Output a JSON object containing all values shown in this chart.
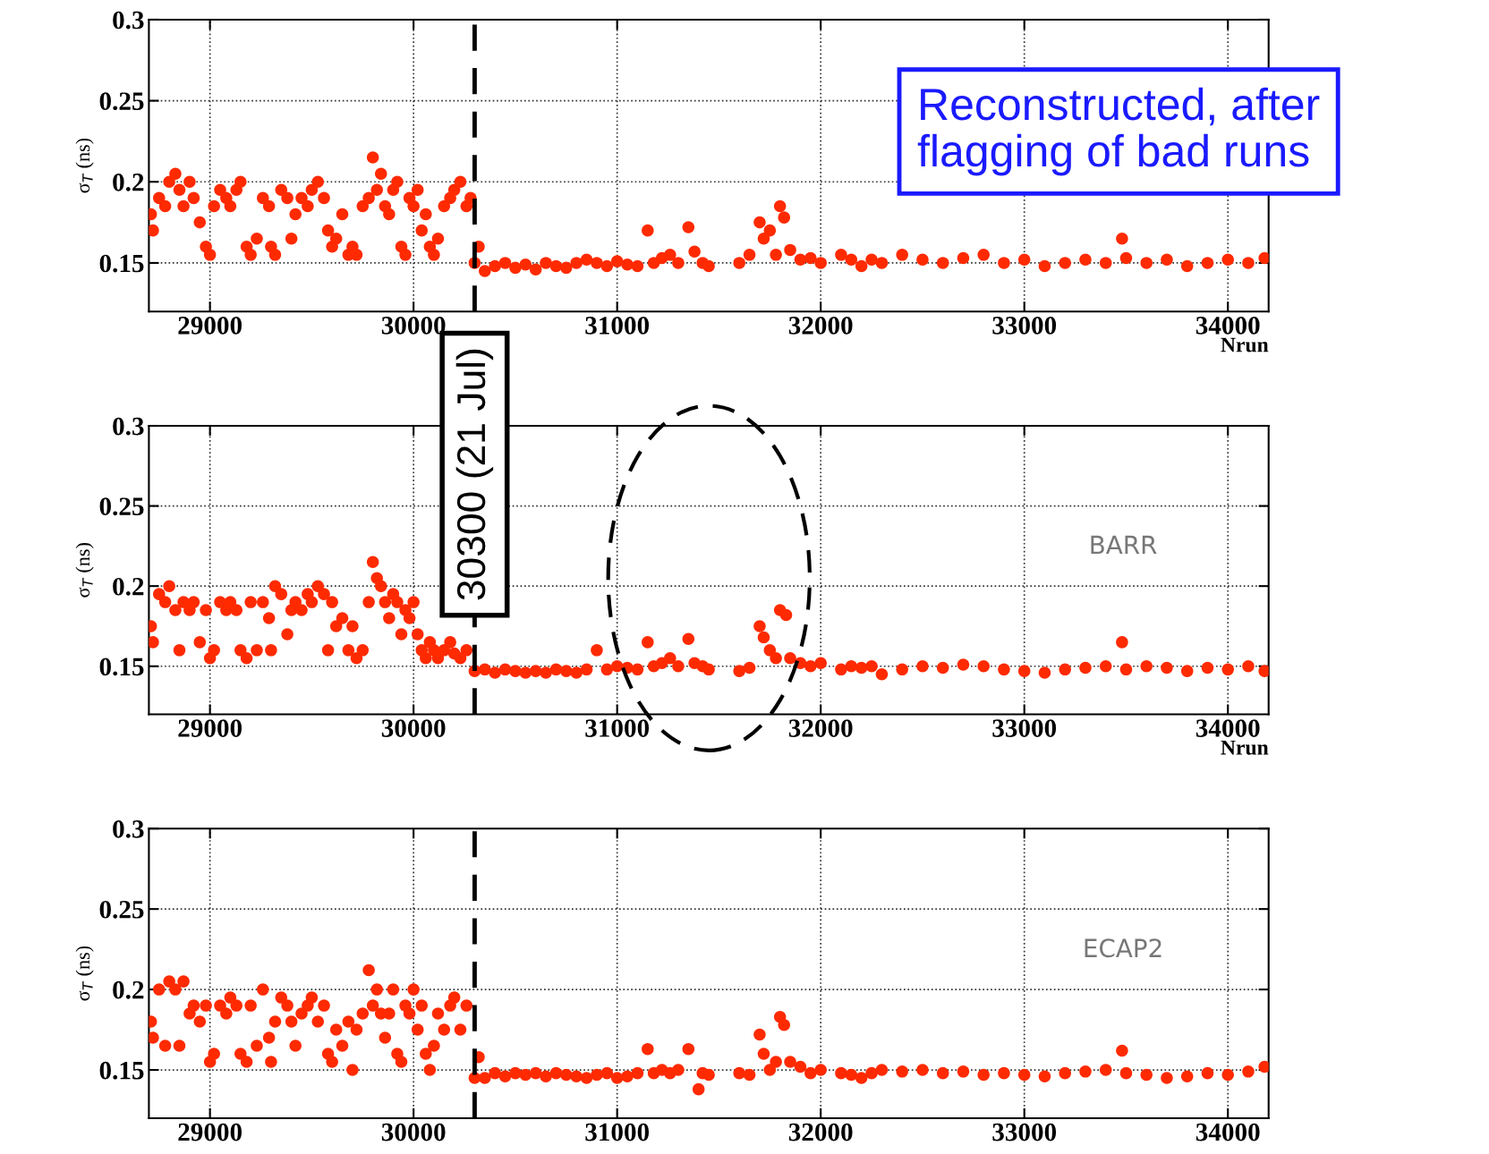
{
  "chart_data": [
    {
      "type": "scatter",
      "xlabel": "Nrun",
      "ylabel": "σ$_{T}$ (ns)",
      "xlim": [
        28700,
        34200
      ],
      "ylim": [
        0.12,
        0.3
      ],
      "xticks": [
        29000,
        30000,
        31000,
        32000,
        33000,
        34000
      ],
      "yticks": [
        0.15,
        0.2,
        0.25,
        0.3
      ],
      "grid": true,
      "marker": "circle",
      "ref_lines": [
        {
          "axis": "x",
          "value": 30300,
          "label": "30300 (21 Jul)",
          "color": "#000000",
          "line_style": "dashed"
        }
      ],
      "annotations": [
        "Reconstructed, after\nflagging of bad runs"
      ],
      "series": [
        {
          "color": "#ff2a00",
          "x": [
            28710,
            28720,
            28750,
            28780,
            28800,
            28830,
            28850,
            28870,
            28900,
            28920,
            28950,
            28980,
            29000,
            29020,
            29050,
            29080,
            29100,
            29130,
            29150,
            29180,
            29200,
            29230,
            29260,
            29290,
            29300,
            29320,
            29350,
            29380,
            29400,
            29420,
            29450,
            29480,
            29500,
            29530,
            29560,
            29580,
            29600,
            29620,
            29650,
            29680,
            29700,
            29720,
            29750,
            29780,
            29800,
            29820,
            29840,
            29860,
            29880,
            29900,
            29920,
            29940,
            29960,
            29980,
            30000,
            30020,
            30040,
            30060,
            30080,
            30100,
            30120,
            30150,
            30180,
            30200,
            30230,
            30260,
            30280,
            30300,
            30320,
            30350,
            30400,
            30450,
            30500,
            30550,
            30600,
            30650,
            30700,
            30750,
            30800,
            30850,
            30900,
            30950,
            31000,
            31050,
            31100,
            31150,
            31180,
            31220,
            31260,
            31300,
            31350,
            31380,
            31420,
            31450,
            31600,
            31650,
            31700,
            31720,
            31750,
            31780,
            31800,
            31820,
            31850,
            31900,
            31950,
            32000,
            32100,
            32150,
            32200,
            32250,
            32300,
            32400,
            32500,
            32600,
            32700,
            32800,
            32900,
            33000,
            33100,
            33200,
            33300,
            33400,
            33480,
            33500,
            33600,
            33700,
            33800,
            33900,
            34000,
            34100,
            34180
          ],
          "values": [
            0.18,
            0.17,
            0.19,
            0.185,
            0.2,
            0.205,
            0.195,
            0.185,
            0.2,
            0.19,
            0.175,
            0.16,
            0.155,
            0.185,
            0.195,
            0.19,
            0.185,
            0.195,
            0.2,
            0.16,
            0.155,
            0.165,
            0.19,
            0.185,
            0.16,
            0.155,
            0.195,
            0.19,
            0.165,
            0.18,
            0.19,
            0.185,
            0.195,
            0.2,
            0.19,
            0.17,
            0.16,
            0.165,
            0.18,
            0.155,
            0.16,
            0.155,
            0.185,
            0.19,
            0.215,
            0.195,
            0.205,
            0.185,
            0.18,
            0.195,
            0.2,
            0.16,
            0.155,
            0.19,
            0.185,
            0.195,
            0.17,
            0.18,
            0.16,
            0.155,
            0.165,
            0.185,
            0.19,
            0.195,
            0.2,
            0.185,
            0.19,
            0.15,
            0.16,
            0.145,
            0.148,
            0.15,
            0.147,
            0.149,
            0.146,
            0.15,
            0.148,
            0.147,
            0.15,
            0.152,
            0.15,
            0.148,
            0.151,
            0.149,
            0.148,
            0.17,
            0.15,
            0.153,
            0.155,
            0.15,
            0.172,
            0.157,
            0.15,
            0.148,
            0.15,
            0.155,
            0.175,
            0.165,
            0.17,
            0.155,
            0.185,
            0.178,
            0.158,
            0.152,
            0.153,
            0.15,
            0.155,
            0.152,
            0.148,
            0.152,
            0.15,
            0.155,
            0.152,
            0.15,
            0.153,
            0.155,
            0.15,
            0.152,
            0.148,
            0.15,
            0.152,
            0.15,
            0.165,
            0.153,
            0.15,
            0.152,
            0.148,
            0.15,
            0.152,
            0.15,
            0.153
          ]
        }
      ]
    },
    {
      "type": "scatter",
      "xlabel": "Nrun",
      "ylabel": "σ$_{T}$ (ns)",
      "xlim": [
        28700,
        34200
      ],
      "ylim": [
        0.12,
        0.3
      ],
      "xticks": [
        29000,
        30000,
        31000,
        32000,
        33000,
        34000
      ],
      "yticks": [
        0.15,
        0.2,
        0.25,
        0.3
      ],
      "grid": true,
      "marker": "circle",
      "ref_lines": [
        {
          "axis": "x",
          "value": 30300,
          "color": "#000000",
          "line_style": "dashed"
        }
      ],
      "annotations": [
        "BARR"
      ],
      "series": [
        {
          "color": "#ff2a00",
          "x": [
            28710,
            28720,
            28750,
            28780,
            28800,
            28830,
            28850,
            28870,
            28900,
            28920,
            28950,
            28980,
            29000,
            29020,
            29050,
            29080,
            29100,
            29130,
            29150,
            29180,
            29200,
            29230,
            29260,
            29290,
            29300,
            29320,
            29350,
            29380,
            29400,
            29420,
            29450,
            29480,
            29500,
            29530,
            29560,
            29580,
            29600,
            29620,
            29650,
            29680,
            29700,
            29720,
            29750,
            29780,
            29800,
            29820,
            29840,
            29860,
            29880,
            29900,
            29920,
            29940,
            29960,
            29980,
            30000,
            30020,
            30040,
            30060,
            30080,
            30100,
            30120,
            30150,
            30180,
            30200,
            30230,
            30260,
            30300,
            30350,
            30400,
            30450,
            30500,
            30550,
            30600,
            30650,
            30700,
            30750,
            30800,
            30850,
            30900,
            30950,
            31000,
            31050,
            31100,
            31150,
            31180,
            31220,
            31260,
            31300,
            31350,
            31380,
            31420,
            31450,
            31600,
            31650,
            31700,
            31720,
            31750,
            31780,
            31800,
            31830,
            31850,
            31900,
            31950,
            32000,
            32100,
            32150,
            32200,
            32250,
            32300,
            32400,
            32500,
            32600,
            32700,
            32800,
            32900,
            33000,
            33100,
            33200,
            33300,
            33400,
            33480,
            33500,
            33600,
            33700,
            33800,
            33900,
            34000,
            34100,
            34180
          ],
          "values": [
            0.175,
            0.165,
            0.195,
            0.19,
            0.2,
            0.185,
            0.16,
            0.19,
            0.185,
            0.19,
            0.165,
            0.185,
            0.155,
            0.16,
            0.19,
            0.185,
            0.19,
            0.185,
            0.16,
            0.155,
            0.19,
            0.16,
            0.19,
            0.18,
            0.16,
            0.2,
            0.195,
            0.17,
            0.185,
            0.19,
            0.185,
            0.195,
            0.19,
            0.2,
            0.195,
            0.16,
            0.19,
            0.175,
            0.18,
            0.16,
            0.175,
            0.155,
            0.16,
            0.19,
            0.215,
            0.205,
            0.2,
            0.19,
            0.18,
            0.195,
            0.19,
            0.17,
            0.185,
            0.18,
            0.19,
            0.17,
            0.16,
            0.155,
            0.165,
            0.16,
            0.155,
            0.16,
            0.165,
            0.158,
            0.155,
            0.16,
            0.147,
            0.148,
            0.146,
            0.148,
            0.147,
            0.146,
            0.147,
            0.146,
            0.148,
            0.147,
            0.146,
            0.148,
            0.16,
            0.148,
            0.15,
            0.149,
            0.148,
            0.165,
            0.15,
            0.152,
            0.155,
            0.15,
            0.167,
            0.152,
            0.15,
            0.148,
            0.147,
            0.149,
            0.175,
            0.168,
            0.16,
            0.155,
            0.185,
            0.182,
            0.155,
            0.152,
            0.15,
            0.152,
            0.148,
            0.15,
            0.149,
            0.15,
            0.145,
            0.148,
            0.15,
            0.149,
            0.151,
            0.15,
            0.148,
            0.147,
            0.146,
            0.148,
            0.149,
            0.15,
            0.165,
            0.148,
            0.15,
            0.149,
            0.147,
            0.149,
            0.148,
            0.15,
            0.147
          ]
        }
      ]
    },
    {
      "type": "scatter",
      "ylabel": "σ$_{T}$ (ns)",
      "xlim": [
        28700,
        34200
      ],
      "ylim": [
        0.12,
        0.3
      ],
      "xticks": [
        29000,
        30000,
        31000,
        32000,
        33000,
        34000
      ],
      "yticks": [
        0.15,
        0.2,
        0.25,
        0.3
      ],
      "grid": true,
      "marker": "circle",
      "ref_lines": [
        {
          "axis": "x",
          "value": 30300,
          "color": "#000000",
          "line_style": "dashed"
        }
      ],
      "annotations": [
        "ECAP2"
      ],
      "series": [
        {
          "color": "#ff2a00",
          "x": [
            28710,
            28720,
            28750,
            28780,
            28800,
            28830,
            28850,
            28870,
            28900,
            28920,
            28950,
            28980,
            29000,
            29020,
            29050,
            29080,
            29100,
            29130,
            29150,
            29180,
            29200,
            29230,
            29260,
            29290,
            29300,
            29320,
            29350,
            29380,
            29400,
            29420,
            29450,
            29480,
            29500,
            29530,
            29560,
            29580,
            29600,
            29620,
            29650,
            29680,
            29700,
            29720,
            29750,
            29780,
            29800,
            29820,
            29840,
            29860,
            29880,
            29900,
            29920,
            29940,
            29960,
            29980,
            30000,
            30020,
            30040,
            30060,
            30080,
            30100,
            30120,
            30150,
            30180,
            30200,
            30230,
            30260,
            30300,
            30320,
            30350,
            30400,
            30450,
            30500,
            30550,
            30600,
            30650,
            30700,
            30750,
            30800,
            30850,
            30900,
            30950,
            31000,
            31050,
            31100,
            31150,
            31180,
            31220,
            31260,
            31300,
            31350,
            31400,
            31420,
            31450,
            31600,
            31650,
            31700,
            31720,
            31750,
            31780,
            31800,
            31820,
            31850,
            31900,
            31950,
            32000,
            32100,
            32150,
            32200,
            32250,
            32300,
            32400,
            32500,
            32600,
            32700,
            32800,
            32900,
            33000,
            33100,
            33200,
            33300,
            33400,
            33480,
            33500,
            33600,
            33700,
            33800,
            33900,
            34000,
            34100,
            34180
          ],
          "values": [
            0.18,
            0.17,
            0.2,
            0.165,
            0.205,
            0.2,
            0.165,
            0.205,
            0.185,
            0.19,
            0.18,
            0.19,
            0.155,
            0.16,
            0.19,
            0.185,
            0.195,
            0.19,
            0.16,
            0.155,
            0.19,
            0.165,
            0.2,
            0.17,
            0.155,
            0.18,
            0.195,
            0.19,
            0.18,
            0.165,
            0.185,
            0.19,
            0.195,
            0.18,
            0.19,
            0.16,
            0.155,
            0.175,
            0.165,
            0.18,
            0.15,
            0.175,
            0.185,
            0.212,
            0.19,
            0.2,
            0.185,
            0.17,
            0.185,
            0.2,
            0.16,
            0.155,
            0.19,
            0.185,
            0.2,
            0.175,
            0.19,
            0.16,
            0.15,
            0.165,
            0.185,
            0.175,
            0.19,
            0.195,
            0.175,
            0.19,
            0.145,
            0.158,
            0.145,
            0.148,
            0.146,
            0.148,
            0.147,
            0.148,
            0.146,
            0.148,
            0.147,
            0.146,
            0.145,
            0.147,
            0.148,
            0.145,
            0.146,
            0.148,
            0.163,
            0.148,
            0.15,
            0.148,
            0.15,
            0.163,
            0.138,
            0.148,
            0.147,
            0.148,
            0.147,
            0.172,
            0.16,
            0.15,
            0.155,
            0.183,
            0.178,
            0.155,
            0.152,
            0.148,
            0.15,
            0.148,
            0.147,
            0.145,
            0.148,
            0.15,
            0.149,
            0.15,
            0.148,
            0.149,
            0.147,
            0.148,
            0.147,
            0.146,
            0.148,
            0.149,
            0.15,
            0.162,
            0.148,
            0.147,
            0.145,
            0.146,
            0.148,
            0.147,
            0.149,
            0.152
          ]
        }
      ]
    }
  ]
}
